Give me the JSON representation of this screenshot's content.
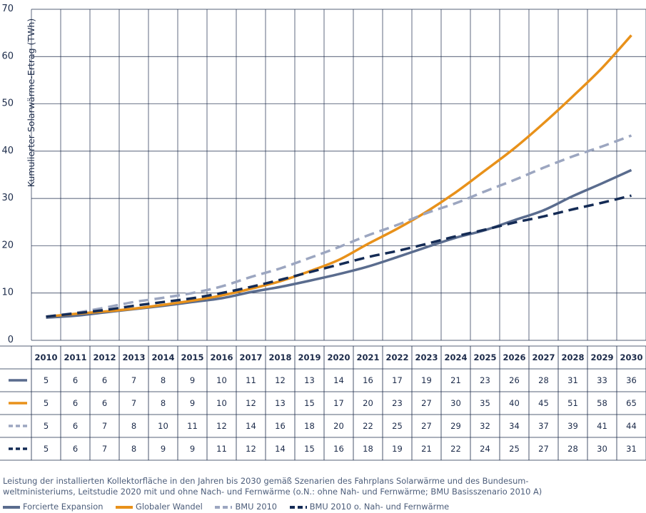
{
  "chart_data": {
    "type": "line",
    "ylabel": "Kumulierter Solarwärme-Ertrag (TWh)",
    "ylim": [
      0,
      70
    ],
    "yticks": [
      0,
      10,
      20,
      30,
      40,
      50,
      60,
      70
    ],
    "x": [
      "2010",
      "2011",
      "2012",
      "2013",
      "2014",
      "2015",
      "2016",
      "2017",
      "2018",
      "2019",
      "2020",
      "2021",
      "2022",
      "2023",
      "2024",
      "2025",
      "2026",
      "2027",
      "2028",
      "2029",
      "2030"
    ],
    "series": [
      {
        "name": "Forcierte Expansion",
        "color": "#5a6c8e",
        "dash": "solid",
        "values": [
          5,
          6,
          6,
          7,
          8,
          9,
          10,
          11,
          12,
          13,
          14,
          16,
          17,
          19,
          21,
          23,
          26,
          28,
          31,
          33,
          36
        ],
        "curve": [
          4.8,
          5.2,
          5.9,
          6.6,
          7.3,
          8.1,
          8.9,
          10.2,
          11.3,
          12.6,
          14.0,
          15.6,
          17.6,
          19.7,
          21.7,
          23.3,
          25.4,
          27.5,
          30.5,
          33.2,
          36.0
        ]
      },
      {
        "name": "Globaler Wandel",
        "color": "#e8911a",
        "dash": "solid",
        "values": [
          5,
          6,
          6,
          7,
          8,
          9,
          10,
          12,
          13,
          15,
          17,
          20,
          23,
          27,
          30,
          35,
          40,
          45,
          51,
          58,
          65
        ],
        "curve": [
          5.0,
          5.6,
          6.1,
          6.7,
          7.5,
          8.4,
          9.5,
          10.9,
          12.5,
          14.6,
          17.0,
          20.4,
          23.6,
          27.2,
          31.3,
          35.9,
          40.6,
          45.9,
          51.6,
          57.6,
          64.5
        ]
      },
      {
        "name": "BMU 2010",
        "color": "#9ca6c0",
        "dash": "dashed",
        "values": [
          5,
          6,
          7,
          8,
          10,
          11,
          12,
          14,
          16,
          18,
          20,
          22,
          25,
          27,
          29,
          32,
          34,
          37,
          39,
          41,
          44
        ],
        "curve": [
          5.0,
          5.8,
          6.9,
          8.1,
          9.0,
          10.0,
          11.4,
          13.4,
          15.2,
          17.4,
          19.7,
          22.2,
          24.4,
          26.9,
          29.0,
          31.5,
          33.9,
          36.5,
          38.9,
          41.0,
          43.3
        ]
      },
      {
        "name": "BMU 2010 o. Nah- und Fernwärme",
        "color": "#142b55",
        "dash": "dashed",
        "values": [
          5,
          6,
          7,
          8,
          9,
          9,
          11,
          12,
          14,
          15,
          16,
          18,
          19,
          21,
          22,
          24,
          25,
          27,
          28,
          30,
          31
        ],
        "curve": [
          5.0,
          5.7,
          6.4,
          7.3,
          8.1,
          8.9,
          10.0,
          11.3,
          12.8,
          14.4,
          16.0,
          17.6,
          18.9,
          20.4,
          22.0,
          23.4,
          24.9,
          26.2,
          27.7,
          29.1,
          30.6
        ]
      }
    ]
  },
  "caption": {
    "line1": "Leistung der installierten Kollektorfläche in den Jahren bis 2030 gemäß Szenarien des Fahrplans Solarwärme und des Bundesum-",
    "line2": "weltministeriums, Leitstudie 2020 mit und ohne Nach- und Fernwärme (o.N.: ohne Nah- und Fernwärme; BMU Basisszenario 2010 A)"
  },
  "legend": {
    "items": [
      {
        "label": "Forcierte Expansion",
        "color": "#5a6c8e",
        "dash": "solid"
      },
      {
        "label": "Globaler Wandel",
        "color": "#e8911a",
        "dash": "solid"
      },
      {
        "label": "BMU 2010",
        "color": "#9ca6c0",
        "dash": "dashed"
      },
      {
        "label": "BMU 2010 o. Nah- und Fernwärme",
        "color": "#142b55",
        "dash": "dashed"
      }
    ]
  }
}
